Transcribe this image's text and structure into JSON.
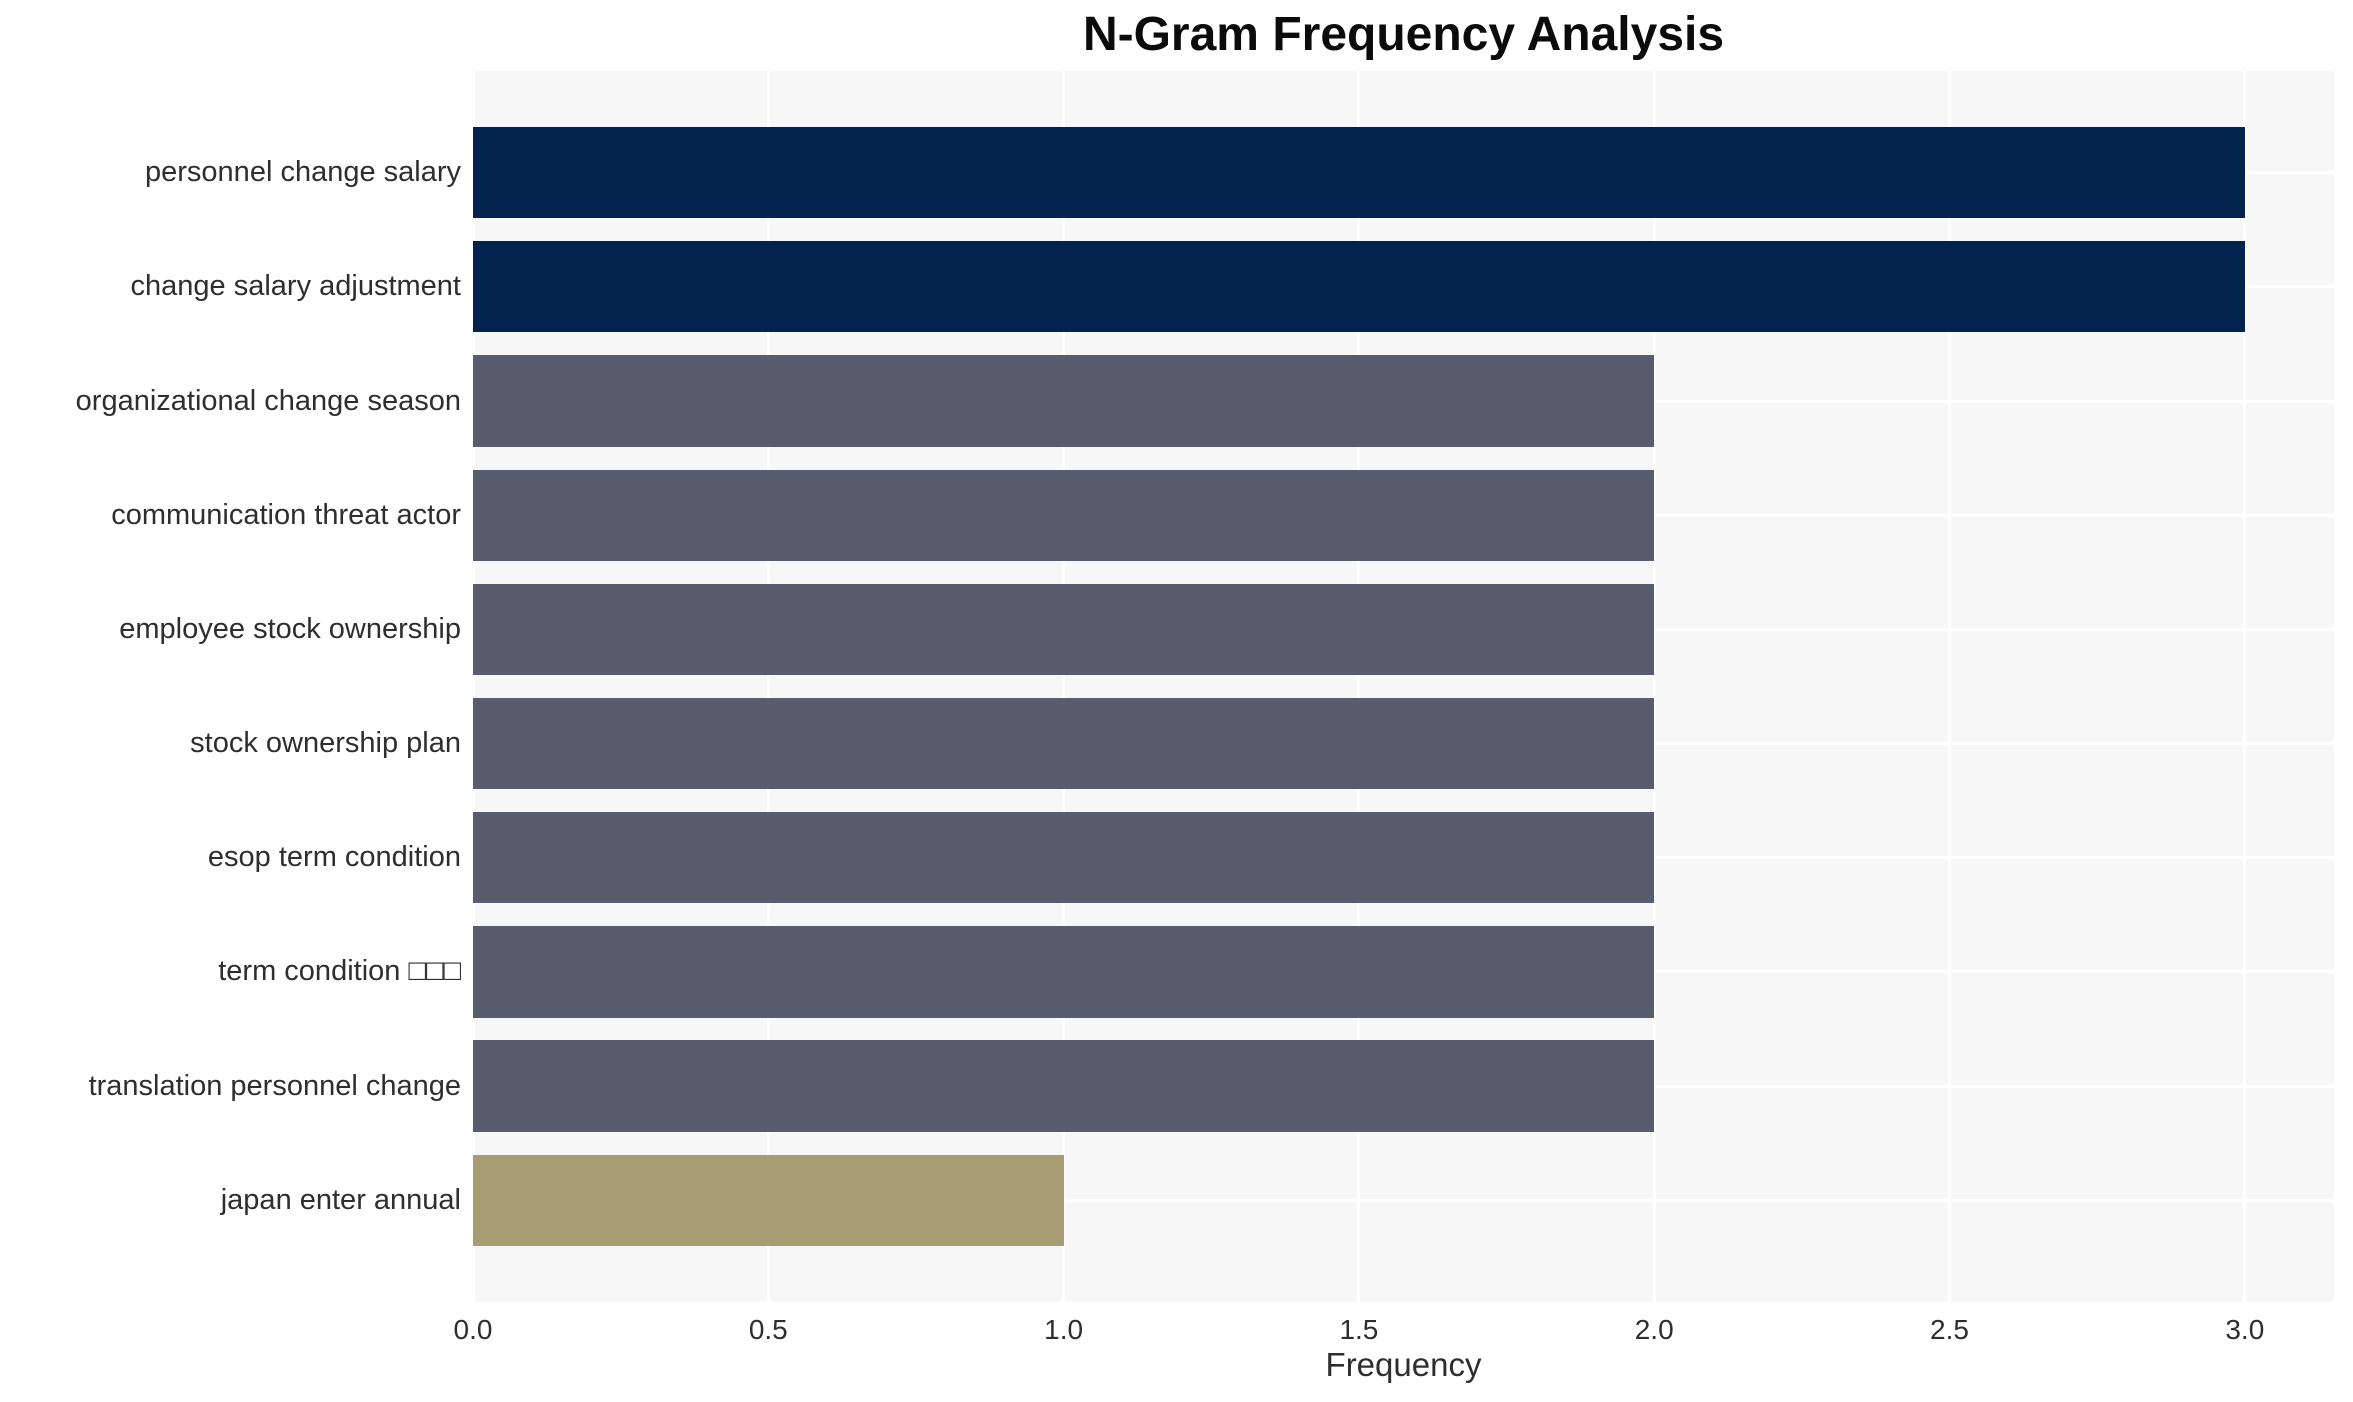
{
  "chart_data": {
    "type": "bar",
    "orientation": "horizontal",
    "title": "N-Gram Frequency Analysis",
    "xlabel": "Frequency",
    "ylabel": "",
    "categories": [
      "personnel change salary",
      "change salary adjustment",
      "organizational change season",
      "communication threat actor",
      "employee stock ownership",
      "stock ownership plan",
      "esop term condition",
      "term condition □□□",
      "translation personnel change",
      "japan enter annual"
    ],
    "values": [
      3.0,
      3.0,
      2.0,
      2.0,
      2.0,
      2.0,
      2.0,
      2.0,
      2.0,
      1.0
    ],
    "bar_colors": [
      "#02234e",
      "#02234e",
      "#575d6c",
      "#575d6c",
      "#575d6c",
      "#575d6c",
      "#575d6c",
      "#575d6c",
      "#575d6c",
      "#a69e72"
    ],
    "xlim": [
      0,
      3.151
    ],
    "xticks": [
      0,
      0.5,
      1,
      1.5,
      2,
      2.5,
      3
    ],
    "xtick_labels": [
      "0.0",
      "0.5",
      "1.0",
      "1.5",
      "2.0",
      "2.5",
      "3.0"
    ],
    "grid": {
      "visible": true,
      "color": "#ffffff"
    },
    "colors": {
      "plot_background": "#f7f7f7",
      "figure_background": "#ffffff",
      "tick_text": "#2e2e2e",
      "title_text": "#0b0b0b"
    }
  }
}
